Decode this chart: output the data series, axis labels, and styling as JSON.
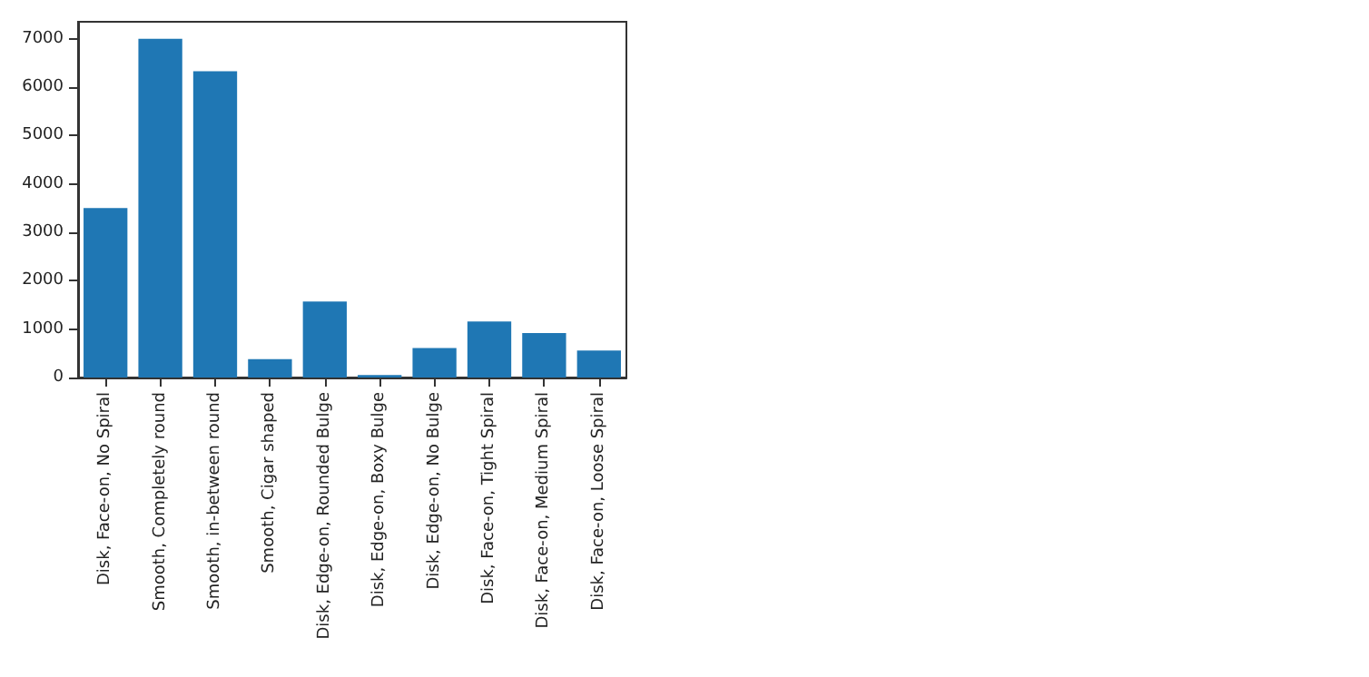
{
  "chart_data": {
    "type": "bar",
    "categories": [
      "Disk, Face-on, No Spiral",
      "Smooth, Completely round",
      "Smooth, in-between round",
      "Smooth, Cigar shaped",
      "Disk, Edge-on, Rounded Bulge",
      "Disk, Edge-on, Boxy Bulge",
      "Disk, Edge-on, No Bulge",
      "Disk, Face-on, Tight Spiral",
      "Disk, Face-on, Medium Spiral",
      "Disk, Face-on, Loose Spiral"
    ],
    "values": [
      3500,
      7000,
      6330,
      380,
      1570,
      50,
      610,
      1160,
      920,
      560
    ],
    "color": "#1f77b4",
    "ylim": [
      0,
      7350
    ],
    "yticks": [
      0,
      1000,
      2000,
      3000,
      4000,
      5000,
      6000,
      7000
    ],
    "grid": false
  }
}
